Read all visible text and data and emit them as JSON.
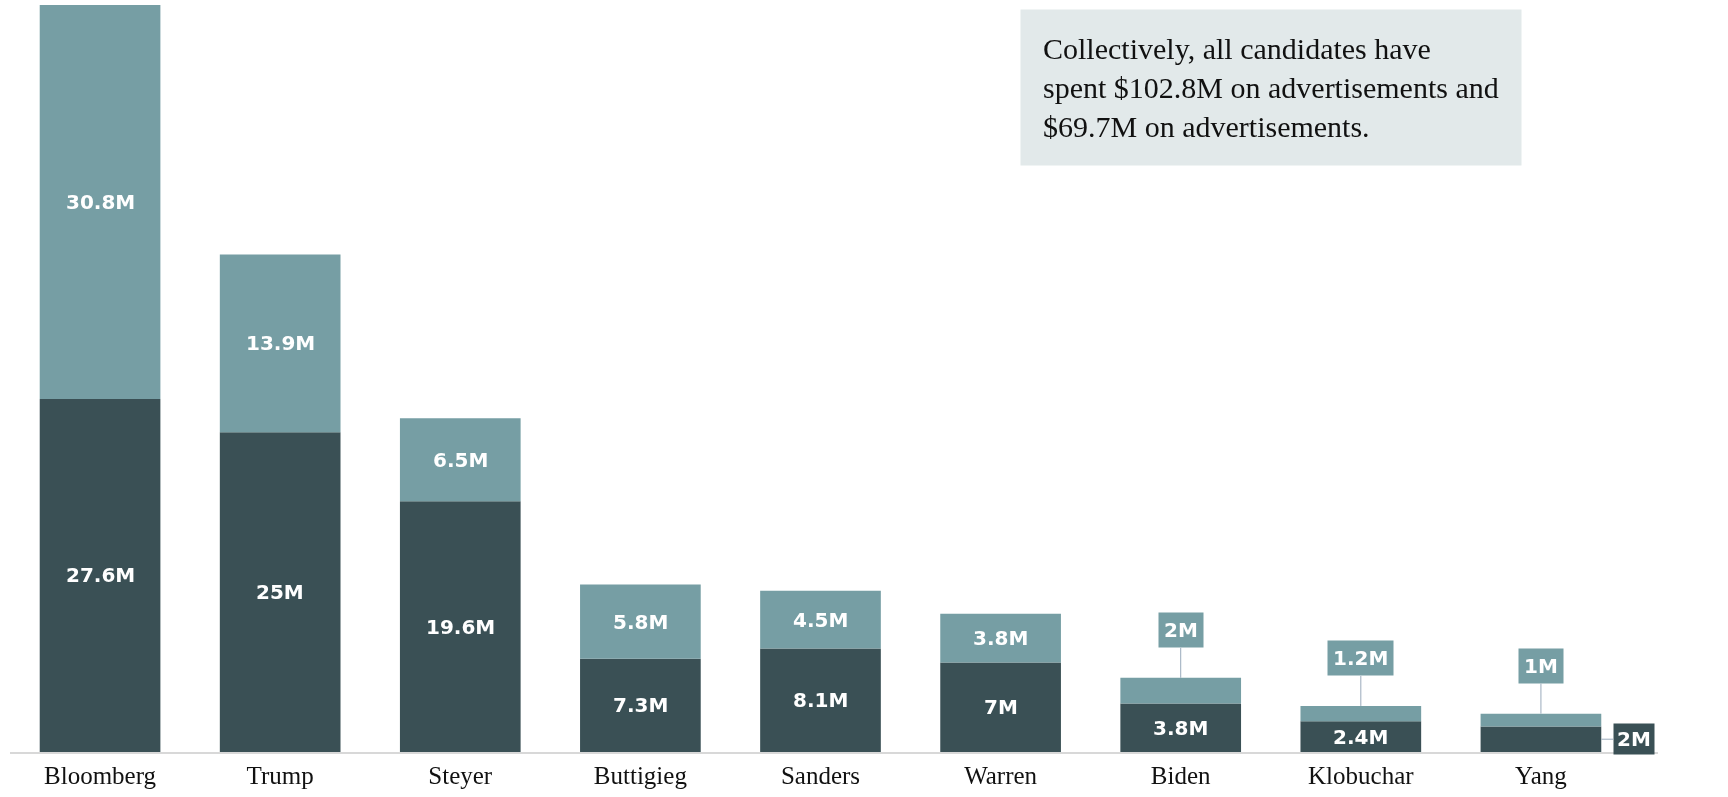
{
  "chart_data": {
    "type": "bar",
    "stacked": true,
    "categories": [
      "Bloomberg",
      "Trump",
      "Steyer",
      "Buttigieg",
      "Sanders",
      "Warren",
      "Biden",
      "Klobuchar",
      "Yang"
    ],
    "series": [
      {
        "color": "#3a5055",
        "values": [
          27.6,
          25,
          19.6,
          7.3,
          8.1,
          7,
          3.8,
          2.4,
          2
        ],
        "value_labels": [
          "27.6M",
          "25M",
          "19.6M",
          "7.3M",
          "8.1M",
          "7M",
          "3.8M",
          "2.4M",
          "2M"
        ]
      },
      {
        "color": "#769ea4",
        "values": [
          30.8,
          13.9,
          6.5,
          5.8,
          4.5,
          3.8,
          2,
          1.2,
          1
        ],
        "value_labels": [
          "30.8M",
          "13.9M",
          "6.5M",
          "5.8M",
          "4.5M",
          "3.8M",
          "2M",
          "1.2M",
          "1M"
        ]
      }
    ],
    "annotations": [
      "Collectively, all candidates have spent $102.8M on advertisements and $69.7M on advertisements."
    ]
  }
}
